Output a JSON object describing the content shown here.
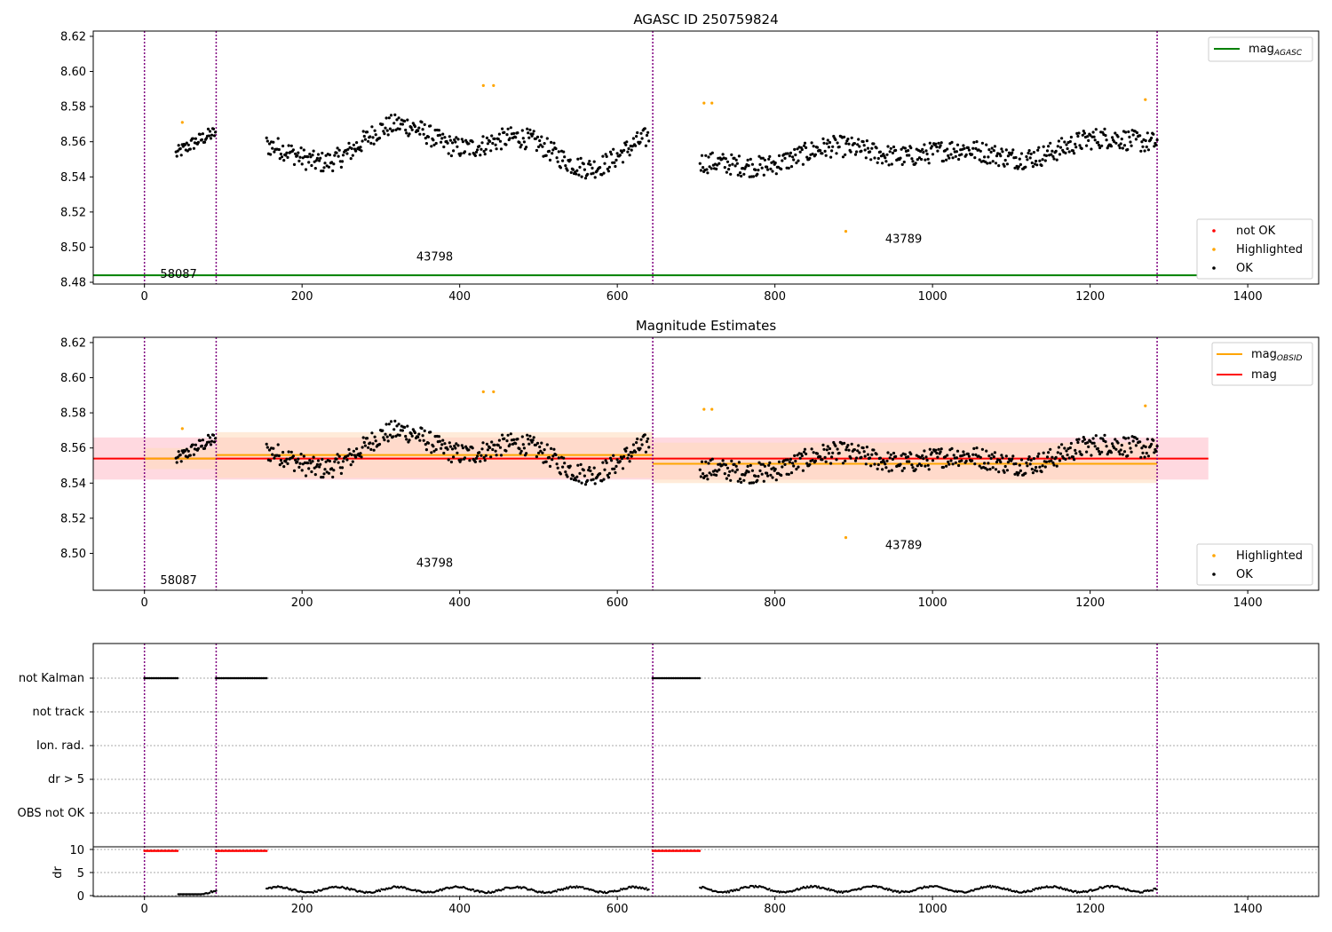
{
  "figure": {
    "title": "AGASC ID 250759824",
    "subtitle2": "Magnitude Estimates"
  },
  "colors": {
    "ok": "#000000",
    "highlighted": "#ffa500",
    "not_ok": "#ff0000",
    "mag_agasc": "#008000",
    "mag_obsid": "#ffa500",
    "mag": "#ff0000",
    "obsid_boundary": "#800080",
    "band_mag": "#ffc0cb",
    "band_obsid": "#ffdab9"
  },
  "chart_data": [
    {
      "type": "scatter",
      "title": "AGASC ID 250759824",
      "xlim": [
        -65,
        1490
      ],
      "ylim": [
        8.479,
        8.623
      ],
      "xticks": [
        "0",
        "200",
        "400",
        "600",
        "800",
        "1000",
        "1200",
        "1400"
      ],
      "yticks": [
        "8.48",
        "8.50",
        "8.52",
        "8.54",
        "8.56",
        "8.58",
        "8.60",
        "8.62"
      ],
      "grid": false,
      "legend_upper": {
        "placement": "upper-right",
        "entries": [
          {
            "label": "mag",
            "sub": "AGASC"
          }
        ]
      },
      "legend_lower": {
        "placement": "lower-right",
        "entries": [
          "not OK",
          "Highlighted",
          "OK"
        ]
      },
      "mag_agasc": 8.484,
      "obsid_boundaries": [
        0,
        91,
        645,
        1285
      ],
      "obsid_labels": [
        {
          "text": "58087",
          "x": 20,
          "y": 8.485
        },
        {
          "text": "43798",
          "x": 345,
          "y": 8.495
        },
        {
          "text": "43789",
          "x": 940,
          "y": 8.505
        }
      ],
      "series": [
        {
          "name": "OK",
          "segments": [
            {
              "x0": 40,
              "x1": 90,
              "n": 45,
              "base": 8.553,
              "slope": 0.0002,
              "amp": 0.004,
              "noise": 0.004
            },
            {
              "x0": 155,
              "x1": 640,
              "n": 400,
              "base": 8.558,
              "slope": 0.0,
              "amp": 0.013,
              "noise": 0.006
            },
            {
              "x0": 705,
              "x1": 1285,
              "n": 480,
              "base": 8.548,
              "slope": 2e-05,
              "amp": 0.006,
              "noise": 0.006
            }
          ]
        },
        {
          "name": "Highlighted",
          "points": [
            [
              48,
              8.571
            ],
            [
              430,
              8.592
            ],
            [
              443,
              8.592
            ],
            [
              710,
              8.582
            ],
            [
              720,
              8.582
            ],
            [
              890,
              8.509
            ],
            [
              1270,
              8.584
            ]
          ]
        },
        {
          "name": "not OK",
          "points": []
        }
      ]
    },
    {
      "type": "scatter",
      "title": "Magnitude Estimates",
      "xlim": [
        -65,
        1490
      ],
      "ylim": [
        8.479,
        8.623
      ],
      "xticks": [
        "0",
        "200",
        "400",
        "600",
        "800",
        "1000",
        "1200",
        "1400"
      ],
      "yticks": [
        "8.50",
        "8.52",
        "8.54",
        "8.56",
        "8.58",
        "8.60",
        "8.62"
      ],
      "legend_upper": {
        "placement": "upper-right",
        "entries": [
          {
            "label": "mag",
            "sub": "OBSID"
          },
          {
            "label": "mag",
            "sub": ""
          }
        ]
      },
      "legend_lower": {
        "placement": "lower-right",
        "entries": [
          "Highlighted",
          "OK"
        ]
      },
      "mag": {
        "value": 8.554,
        "low": 8.542,
        "high": 8.566,
        "x0": -65,
        "x1": 1350
      },
      "mag_obsid": [
        {
          "x0": 0,
          "x1": 91,
          "value": 8.554,
          "low": 8.548,
          "high": 8.56
        },
        {
          "x0": 91,
          "x1": 645,
          "value": 8.556,
          "low": 8.543,
          "high": 8.569
        },
        {
          "x0": 645,
          "x1": 1285,
          "value": 8.551,
          "low": 8.54,
          "high": 8.563
        }
      ]
    },
    {
      "type": "scatter",
      "flags": [
        "not Kalman",
        "not track",
        "Ion. rad.",
        "dr > 5",
        "OBS not OK"
      ],
      "not_kalman_ranges": [
        [
          0,
          43
        ],
        [
          91,
          155
        ],
        [
          645,
          705
        ]
      ],
      "dr": {
        "ylabel": "dr",
        "yticks": [
          "0",
          "5",
          "10"
        ],
        "ylim": [
          -0.5,
          10.5
        ],
        "high_ranges": [
          [
            0,
            43
          ],
          [
            91,
            155
          ],
          [
            645,
            705
          ]
        ],
        "high_value": 9.6,
        "low_segments": [
          [
            43,
            91,
            0.1
          ],
          [
            155,
            640,
            1.0
          ],
          [
            705,
            1285,
            1.1
          ]
        ]
      }
    }
  ]
}
